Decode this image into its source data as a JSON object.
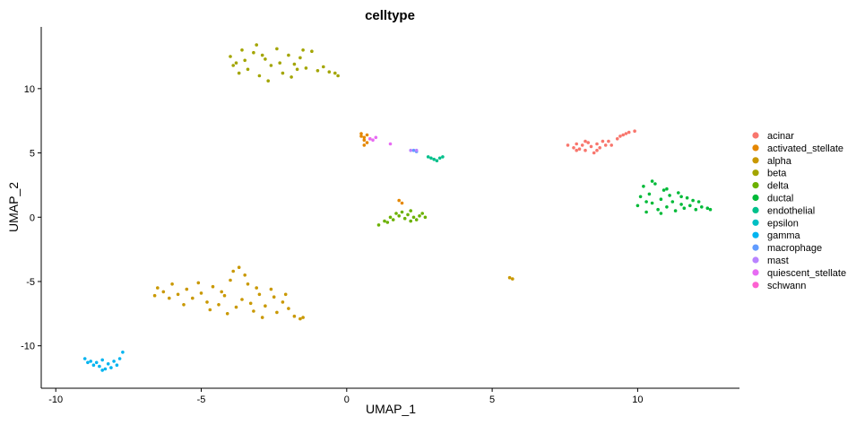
{
  "chart_data": {
    "type": "scatter",
    "title": "celltype",
    "xlabel": "UMAP_1",
    "ylabel": "UMAP_2",
    "xlim": [
      -10.5,
      13.5
    ],
    "ylim": [
      -13.3,
      14.8
    ],
    "xticks": [
      -10,
      -5,
      0,
      5,
      10
    ],
    "yticks": [
      -10,
      -5,
      0,
      5,
      10
    ],
    "grid": false,
    "legend_position": "right",
    "series": [
      {
        "name": "acinar",
        "color": "#F8766D",
        "points": [
          [
            7.6,
            5.6
          ],
          [
            7.8,
            5.4
          ],
          [
            7.9,
            5.7
          ],
          [
            8.0,
            5.3
          ],
          [
            8.1,
            5.6
          ],
          [
            8.2,
            5.2
          ],
          [
            8.3,
            5.8
          ],
          [
            8.4,
            5.5
          ],
          [
            8.5,
            5.0
          ],
          [
            8.6,
            5.7
          ],
          [
            8.7,
            5.4
          ],
          [
            8.8,
            5.9
          ],
          [
            8.9,
            5.6
          ],
          [
            9.0,
            5.9
          ],
          [
            9.1,
            5.6
          ],
          [
            8.2,
            5.9
          ],
          [
            7.9,
            5.2
          ],
          [
            8.6,
            5.2
          ],
          [
            9.3,
            6.1
          ],
          [
            9.5,
            6.4
          ],
          [
            9.7,
            6.6
          ],
          [
            9.9,
            6.7
          ],
          [
            9.4,
            6.3
          ],
          [
            9.6,
            6.5
          ]
        ]
      },
      {
        "name": "activated_stellate",
        "color": "#E58700",
        "points": [
          [
            0.5,
            6.3
          ],
          [
            0.6,
            6.0
          ],
          [
            0.7,
            5.8
          ],
          [
            0.6,
            5.6
          ],
          [
            0.8,
            6.1
          ],
          [
            0.5,
            6.5
          ],
          [
            0.7,
            6.4
          ],
          [
            0.6,
            6.2
          ],
          [
            1.8,
            1.3
          ],
          [
            1.9,
            1.1
          ]
        ]
      },
      {
        "name": "alpha",
        "color": "#C99800",
        "points": [
          [
            -6.5,
            -5.5
          ],
          [
            -6.3,
            -5.8
          ],
          [
            -6.0,
            -5.2
          ],
          [
            -5.8,
            -6.0
          ],
          [
            -5.5,
            -5.6
          ],
          [
            -5.3,
            -6.3
          ],
          [
            -5.0,
            -5.9
          ],
          [
            -4.8,
            -6.6
          ],
          [
            -4.6,
            -5.4
          ],
          [
            -4.4,
            -6.8
          ],
          [
            -4.2,
            -6.1
          ],
          [
            -4.0,
            -4.9
          ],
          [
            -3.8,
            -7.0
          ],
          [
            -3.6,
            -6.4
          ],
          [
            -3.4,
            -5.2
          ],
          [
            -3.2,
            -7.3
          ],
          [
            -3.0,
            -6.0
          ],
          [
            -2.8,
            -6.9
          ],
          [
            -2.6,
            -5.6
          ],
          [
            -2.4,
            -7.4
          ],
          [
            -2.2,
            -6.6
          ],
          [
            -2.0,
            -7.1
          ],
          [
            -1.8,
            -7.7
          ],
          [
            -1.6,
            -7.9
          ],
          [
            -1.5,
            -7.8
          ],
          [
            -3.9,
            -4.2
          ],
          [
            -3.7,
            -3.9
          ],
          [
            -3.5,
            -4.5
          ],
          [
            -5.6,
            -6.8
          ],
          [
            -6.1,
            -6.3
          ],
          [
            -4.3,
            -5.8
          ],
          [
            -3.1,
            -5.5
          ],
          [
            -2.5,
            -6.2
          ],
          [
            -2.9,
            -7.8
          ],
          [
            -4.1,
            -7.5
          ],
          [
            -5.1,
            -5.1
          ],
          [
            -6.6,
            -6.1
          ],
          [
            -3.3,
            -6.7
          ],
          [
            -2.1,
            -6.0
          ],
          [
            -4.7,
            -7.2
          ],
          [
            5.6,
            -4.7
          ],
          [
            5.7,
            -4.8
          ]
        ]
      },
      {
        "name": "beta",
        "color": "#A3A500",
        "points": [
          [
            -4.0,
            12.5
          ],
          [
            -3.8,
            12.0
          ],
          [
            -3.6,
            13.0
          ],
          [
            -3.4,
            11.5
          ],
          [
            -3.2,
            12.8
          ],
          [
            -3.0,
            11.0
          ],
          [
            -2.8,
            12.3
          ],
          [
            -2.6,
            11.8
          ],
          [
            -2.4,
            13.1
          ],
          [
            -2.2,
            11.2
          ],
          [
            -2.0,
            12.6
          ],
          [
            -1.8,
            11.9
          ],
          [
            -1.6,
            12.4
          ],
          [
            -1.4,
            11.6
          ],
          [
            -1.2,
            12.9
          ],
          [
            -1.0,
            11.4
          ],
          [
            -0.8,
            11.7
          ],
          [
            -0.6,
            11.3
          ],
          [
            -0.4,
            11.2
          ],
          [
            -0.3,
            11.0
          ],
          [
            -3.7,
            11.2
          ],
          [
            -3.1,
            13.4
          ],
          [
            -2.7,
            10.6
          ],
          [
            -3.5,
            12.2
          ],
          [
            -2.3,
            12.0
          ],
          [
            -1.9,
            10.9
          ],
          [
            -1.5,
            13.0
          ],
          [
            -3.9,
            11.8
          ],
          [
            -2.9,
            12.6
          ],
          [
            -1.7,
            11.5
          ]
        ]
      },
      {
        "name": "delta",
        "color": "#6BB100",
        "points": [
          [
            1.1,
            -0.6
          ],
          [
            1.3,
            -0.3
          ],
          [
            1.5,
            0.0
          ],
          [
            1.6,
            -0.2
          ],
          [
            1.7,
            0.3
          ],
          [
            1.8,
            0.1
          ],
          [
            1.9,
            0.4
          ],
          [
            2.0,
            -0.1
          ],
          [
            2.1,
            0.2
          ],
          [
            2.2,
            0.5
          ],
          [
            2.3,
            0.0
          ],
          [
            2.4,
            -0.2
          ],
          [
            2.5,
            0.1
          ],
          [
            2.6,
            0.3
          ],
          [
            2.7,
            0.0
          ],
          [
            1.4,
            -0.4
          ],
          [
            2.2,
            -0.3
          ]
        ]
      },
      {
        "name": "ductal",
        "color": "#00BA38",
        "points": [
          [
            10.0,
            0.9
          ],
          [
            10.1,
            1.6
          ],
          [
            10.2,
            2.4
          ],
          [
            10.3,
            0.4
          ],
          [
            10.4,
            1.8
          ],
          [
            10.5,
            1.1
          ],
          [
            10.6,
            2.6
          ],
          [
            10.7,
            0.6
          ],
          [
            10.8,
            1.4
          ],
          [
            10.9,
            2.1
          ],
          [
            11.0,
            0.8
          ],
          [
            11.1,
            1.7
          ],
          [
            11.2,
            1.2
          ],
          [
            11.3,
            0.5
          ],
          [
            11.4,
            1.9
          ],
          [
            11.5,
            1.0
          ],
          [
            11.6,
            0.7
          ],
          [
            11.7,
            1.5
          ],
          [
            11.8,
            0.9
          ],
          [
            11.9,
            1.3
          ],
          [
            12.0,
            0.6
          ],
          [
            12.1,
            1.2
          ],
          [
            12.2,
            0.8
          ],
          [
            12.4,
            0.7
          ],
          [
            12.5,
            0.6
          ],
          [
            10.5,
            2.8
          ],
          [
            11.0,
            2.2
          ],
          [
            10.3,
            1.2
          ],
          [
            11.5,
            1.6
          ],
          [
            10.8,
            0.3
          ]
        ]
      },
      {
        "name": "endothelial",
        "color": "#00C08B",
        "points": [
          [
            2.9,
            4.6
          ],
          [
            3.0,
            4.5
          ],
          [
            3.1,
            4.4
          ],
          [
            3.2,
            4.6
          ],
          [
            3.3,
            4.7
          ],
          [
            2.8,
            4.7
          ]
        ]
      },
      {
        "name": "epsilon",
        "color": "#00BFC4",
        "points": []
      },
      {
        "name": "gamma",
        "color": "#00B4F0",
        "points": [
          [
            -9.0,
            -11.0
          ],
          [
            -8.8,
            -11.2
          ],
          [
            -8.6,
            -11.3
          ],
          [
            -8.5,
            -11.6
          ],
          [
            -8.4,
            -11.1
          ],
          [
            -8.3,
            -11.8
          ],
          [
            -8.2,
            -11.4
          ],
          [
            -8.1,
            -11.7
          ],
          [
            -8.0,
            -11.2
          ],
          [
            -7.9,
            -11.5
          ],
          [
            -7.8,
            -11.0
          ],
          [
            -8.7,
            -11.5
          ],
          [
            -8.4,
            -11.9
          ],
          [
            -7.7,
            -10.5
          ],
          [
            -8.9,
            -11.3
          ]
        ]
      },
      {
        "name": "macrophage",
        "color": "#619CFF",
        "points": [
          [
            2.3,
            5.2
          ],
          [
            2.4,
            5.1
          ]
        ]
      },
      {
        "name": "mast",
        "color": "#B983FF",
        "points": [
          [
            2.2,
            5.2
          ],
          [
            2.4,
            5.2
          ]
        ]
      },
      {
        "name": "quiescent_stellate",
        "color": "#E76BF3",
        "points": [
          [
            0.8,
            6.1
          ],
          [
            0.9,
            6.0
          ],
          [
            1.0,
            6.2
          ],
          [
            1.5,
            5.7
          ]
        ]
      },
      {
        "name": "schwann",
        "color": "#FD61D1",
        "points": []
      }
    ]
  }
}
